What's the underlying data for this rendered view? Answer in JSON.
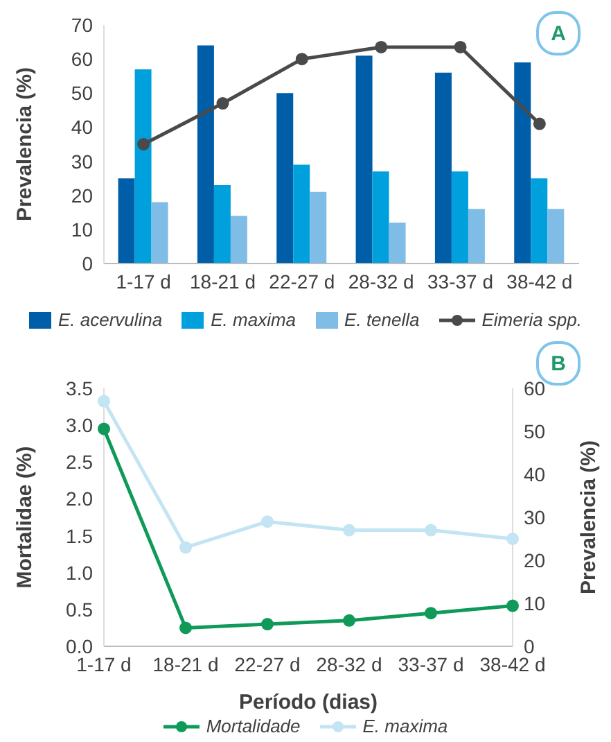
{
  "chart_data": [
    {
      "type": "bar",
      "title": "A",
      "ylabel": "Prevalencia (%)",
      "categories": [
        "1-17 d",
        "18-21 d",
        "22-27 d",
        "28-32 d",
        "33-37 d",
        "38-42 d"
      ],
      "series": [
        {
          "name": "E. acervulina",
          "color": "#005ea8",
          "values": [
            25,
            64,
            50,
            61,
            56,
            59
          ]
        },
        {
          "name": "E. maxima",
          "color": "#00a0dd",
          "values": [
            57,
            23,
            29,
            27,
            27,
            25
          ]
        },
        {
          "name": "E. tenella",
          "color": "#7fbde6",
          "values": [
            18,
            14,
            21,
            12,
            16,
            16
          ]
        },
        {
          "name": "Eimeria spp.",
          "type": "line",
          "color": "#4a4a4a",
          "values": [
            35,
            47,
            60,
            63.5,
            63.5,
            41
          ]
        }
      ],
      "ylim": [
        0,
        70
      ],
      "yticks": [
        0,
        10,
        20,
        30,
        40,
        50,
        60,
        70
      ],
      "grid": false,
      "legend": "bottom",
      "marker": "circle"
    },
    {
      "type": "line",
      "title": "B",
      "xlabel": "Período (dias)",
      "ylabel": "Mortalidae (%)",
      "y2label": "Prevalencia (%)",
      "categories": [
        "1-17 d",
        "18-21 d",
        "22-27 d",
        "28-32 d",
        "33-37 d",
        "38-42 d"
      ],
      "series": [
        {
          "name": "Mortalidade",
          "color": "#0f9a5a",
          "values": [
            2.95,
            0.25,
            0.3,
            0.35,
            0.45,
            0.55
          ]
        },
        {
          "name": "E. maxima",
          "color": "#c2e4f3",
          "axis": "y2",
          "values": [
            57,
            23,
            29,
            27,
            27,
            25
          ]
        }
      ],
      "ylim": [
        0,
        3.5
      ],
      "yticks": [
        {
          "value": 0,
          "label": "0.0"
        },
        0.5,
        {
          "value": 1,
          "label": "1.0"
        },
        1.5,
        {
          "value": 2,
          "label": "2.0"
        },
        2.5,
        {
          "value": 3,
          "label": "3.0"
        },
        3.5
      ],
      "y2lim": [
        0,
        60
      ],
      "y2ticks": [
        0,
        10,
        20,
        30,
        40,
        50,
        60
      ],
      "grid": false,
      "legend": "bottom",
      "marker": "circle"
    }
  ]
}
